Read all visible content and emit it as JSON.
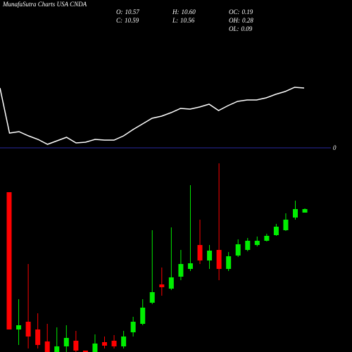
{
  "title": "MunafaSutra Charts USA CNDA",
  "stats": [
    {
      "label": "O:",
      "value": "10.57"
    },
    {
      "label": "C:",
      "value": "10.59"
    },
    {
      "label": "H:",
      "value": "10.60"
    },
    {
      "label": "L:",
      "value": "10.56"
    },
    {
      "label": "OC:",
      "value": "0.19"
    },
    {
      "label": "OH:",
      "value": "0.28"
    },
    {
      "label": "OL:",
      "value": "0.09"
    }
  ],
  "chart_data": [
    {
      "type": "line",
      "color": "#ffffff",
      "baseline_color": "#2a2aa0",
      "baseline_label": "0",
      "ylim": [
        0,
        210
      ],
      "values": [
        85,
        21,
        23,
        17,
        12,
        5,
        10,
        15,
        7,
        8,
        12,
        11,
        11,
        17,
        26,
        34,
        42,
        45,
        50,
        56,
        55,
        58,
        62,
        53,
        60,
        66,
        68,
        68,
        71,
        76,
        80,
        86,
        85
      ]
    },
    {
      "type": "candlestick",
      "up_color": "#00ee00",
      "down_color": "#ff0000",
      "ylim": [
        0,
        500
      ],
      "open": [
        227,
        32,
        43,
        32,
        15,
        0,
        8,
        16,
        2,
        0,
        14,
        16,
        8,
        28,
        40,
        70,
        96,
        90,
        107,
        118,
        152,
        130,
        145,
        118,
        137,
        145,
        152,
        158,
        166,
        173,
        191,
        198
      ],
      "close": [
        32,
        38,
        22,
        10,
        0,
        8,
        20,
        2,
        0,
        12,
        9,
        8,
        22,
        43,
        63,
        85,
        92,
        106,
        125,
        126,
        130,
        144,
        118,
        136,
        153,
        158,
        158,
        165,
        178,
        188,
        203,
        203
      ],
      "high": [
        227,
        75,
        125,
        55,
        40,
        35,
        38,
        30,
        2,
        25,
        22,
        24,
        30,
        50,
        75,
        173,
        120,
        177,
        145,
        237,
        188,
        152,
        268,
        142,
        160,
        162,
        164,
        168,
        182,
        197,
        215,
        204
      ],
      "low": [
        32,
        10,
        5,
        5,
        0,
        0,
        0,
        0,
        0,
        0,
        5,
        5,
        5,
        22,
        38,
        68,
        80,
        88,
        102,
        115,
        125,
        118,
        102,
        115,
        135,
        143,
        150,
        157,
        165,
        172,
        188,
        198
      ]
    }
  ]
}
